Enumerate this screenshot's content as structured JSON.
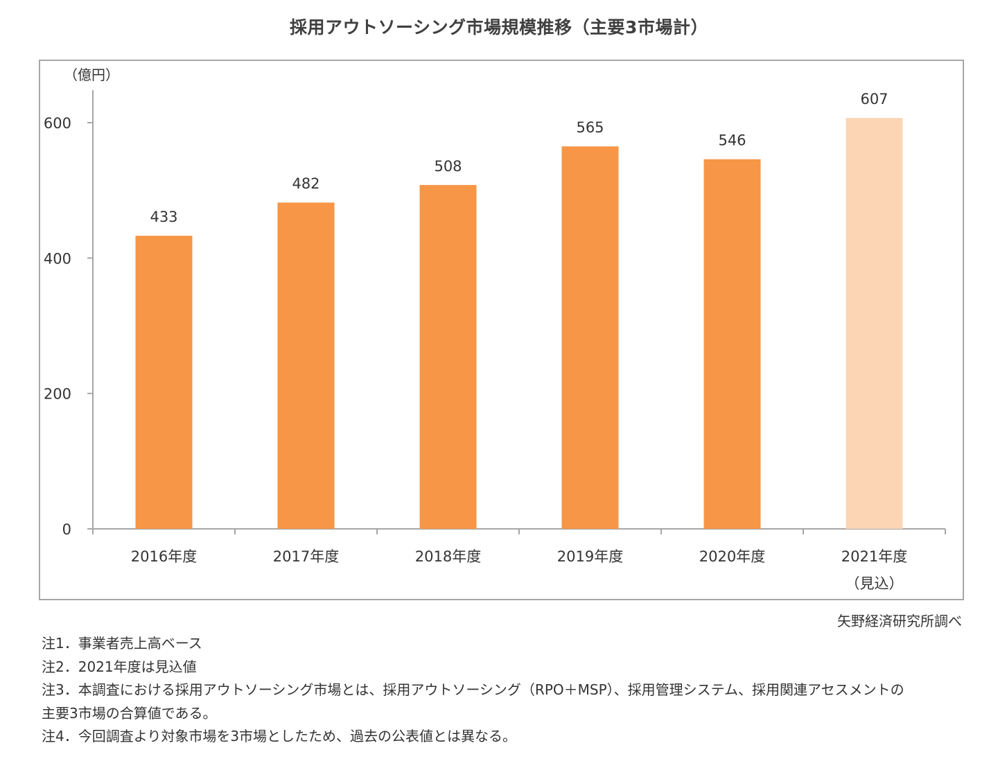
{
  "chart_data": {
    "type": "bar",
    "title": "採用アウトソーシング市場規模推移（主要3市場計）",
    "ylabel": "（億円）",
    "xlabel": "",
    "ylim": [
      0,
      650
    ],
    "yticks": [
      0,
      200,
      400,
      600
    ],
    "ytick_labels": [
      "0",
      "200",
      "400",
      "600"
    ],
    "grid": false,
    "legend": "none",
    "categories": [
      {
        "line1": "2016年度",
        "line2": ""
      },
      {
        "line1": "2017年度",
        "line2": ""
      },
      {
        "line1": "2018年度",
        "line2": ""
      },
      {
        "line1": "2019年度",
        "line2": ""
      },
      {
        "line1": "2020年度",
        "line2": ""
      },
      {
        "line1": "2021年度",
        "line2": "（見込）"
      }
    ],
    "series": [
      {
        "name": "採用アウトソーシング市場規模",
        "values": [
          433,
          482,
          508,
          565,
          546,
          607
        ],
        "data_labels": [
          "433",
          "482",
          "508",
          "565",
          "546",
          "607"
        ],
        "estimate": [
          false,
          false,
          false,
          false,
          false,
          true
        ]
      }
    ],
    "colors": {
      "bar": "#f79646",
      "bar_estimate": "#fcd5b5",
      "axis": "#a6a6a6",
      "text": "#333333"
    }
  },
  "source": "矢野経済研究所調べ",
  "notes": [
    "注1．事業者売上高ベース",
    "注2．2021年度は見込値",
    "注3．本調査における採用アウトソーシング市場とは、採用アウトソーシング（RPO＋MSP）、採用管理システム、採用関連アセスメントの",
    "主要3市場の合算値である。",
    "注4．今回調査より対象市場を3市場としたため、過去の公表値とは異なる。"
  ]
}
